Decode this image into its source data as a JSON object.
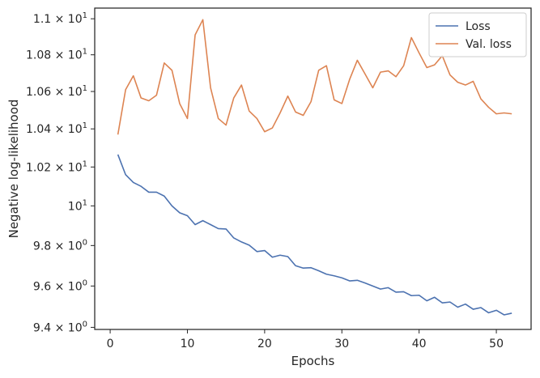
{
  "chart_data": {
    "type": "line",
    "xlabel": "Epochs",
    "ylabel": "Negative log-likelihood",
    "yscale": "log",
    "xlim": [
      -2,
      54.5
    ],
    "ylim": [
      9.39,
      11.06
    ],
    "grid": false,
    "legend_position": "top-right",
    "x_ticks": [
      {
        "value": 0,
        "label": "0"
      },
      {
        "value": 10,
        "label": "10"
      },
      {
        "value": 20,
        "label": "20"
      },
      {
        "value": 30,
        "label": "30"
      },
      {
        "value": 40,
        "label": "40"
      },
      {
        "value": 50,
        "label": "50"
      }
    ],
    "y_ticks": [
      {
        "value": 9.4,
        "mantissa": "9.4",
        "label": "9.4 × 10⁰"
      },
      {
        "value": 9.6,
        "mantissa": "9.6",
        "label": "9.6 × 10⁰"
      },
      {
        "value": 9.8,
        "mantissa": "9.8",
        "label": "9.8 × 10⁰"
      },
      {
        "value": 10.0,
        "mantissa": "",
        "label": "10¹"
      },
      {
        "value": 10.2,
        "mantissa": "1.02",
        "label": "1.02 × 10¹"
      },
      {
        "value": 10.4,
        "mantissa": "1.04",
        "label": "1.04 × 10¹"
      },
      {
        "value": 10.6,
        "mantissa": "1.06",
        "label": "1.06 × 10¹"
      },
      {
        "value": 10.8,
        "mantissa": "1.08",
        "label": "1.08 × 10¹"
      },
      {
        "value": 11.0,
        "mantissa": "1.1",
        "label": "1.1 × 10¹"
      }
    ],
    "x": [
      1,
      2,
      3,
      4,
      5,
      6,
      7,
      8,
      9,
      10,
      11,
      12,
      13,
      14,
      15,
      16,
      17,
      18,
      19,
      20,
      21,
      22,
      23,
      24,
      25,
      26,
      27,
      28,
      29,
      30,
      31,
      32,
      33,
      34,
      35,
      36,
      37,
      38,
      39,
      40,
      41,
      42,
      43,
      44,
      45,
      46,
      47,
      48,
      49,
      50,
      51,
      52
    ],
    "series": [
      {
        "name": "Loss",
        "color": "#4c72b0",
        "values": [
          10.265,
          10.16,
          10.12,
          10.1,
          10.07,
          10.07,
          10.05,
          10.0,
          9.965,
          9.95,
          9.905,
          9.925,
          9.905,
          9.885,
          9.883,
          9.838,
          9.818,
          9.802,
          9.77,
          9.775,
          9.742,
          9.752,
          9.745,
          9.7,
          9.688,
          9.69,
          9.675,
          9.658,
          9.65,
          9.64,
          9.625,
          9.628,
          9.615,
          9.6,
          9.585,
          9.592,
          9.57,
          9.572,
          9.553,
          9.555,
          9.528,
          9.545,
          9.518,
          9.522,
          9.497,
          9.512,
          9.487,
          9.495,
          9.47,
          9.482,
          9.46,
          9.468
        ]
      },
      {
        "name": "Val. loss",
        "color": "#dd8452",
        "values": [
          10.37,
          10.61,
          10.685,
          10.565,
          10.55,
          10.58,
          10.755,
          10.715,
          10.535,
          10.455,
          10.91,
          10.995,
          10.62,
          10.455,
          10.42,
          10.565,
          10.635,
          10.495,
          10.455,
          10.385,
          10.405,
          10.485,
          10.575,
          10.49,
          10.472,
          10.545,
          10.715,
          10.74,
          10.555,
          10.535,
          10.665,
          10.77,
          10.695,
          10.62,
          10.705,
          10.712,
          10.68,
          10.74,
          10.895,
          10.81,
          10.73,
          10.745,
          10.795,
          10.69,
          10.65,
          10.635,
          10.655,
          10.56,
          10.515,
          10.48,
          10.485,
          10.48
        ]
      }
    ]
  }
}
